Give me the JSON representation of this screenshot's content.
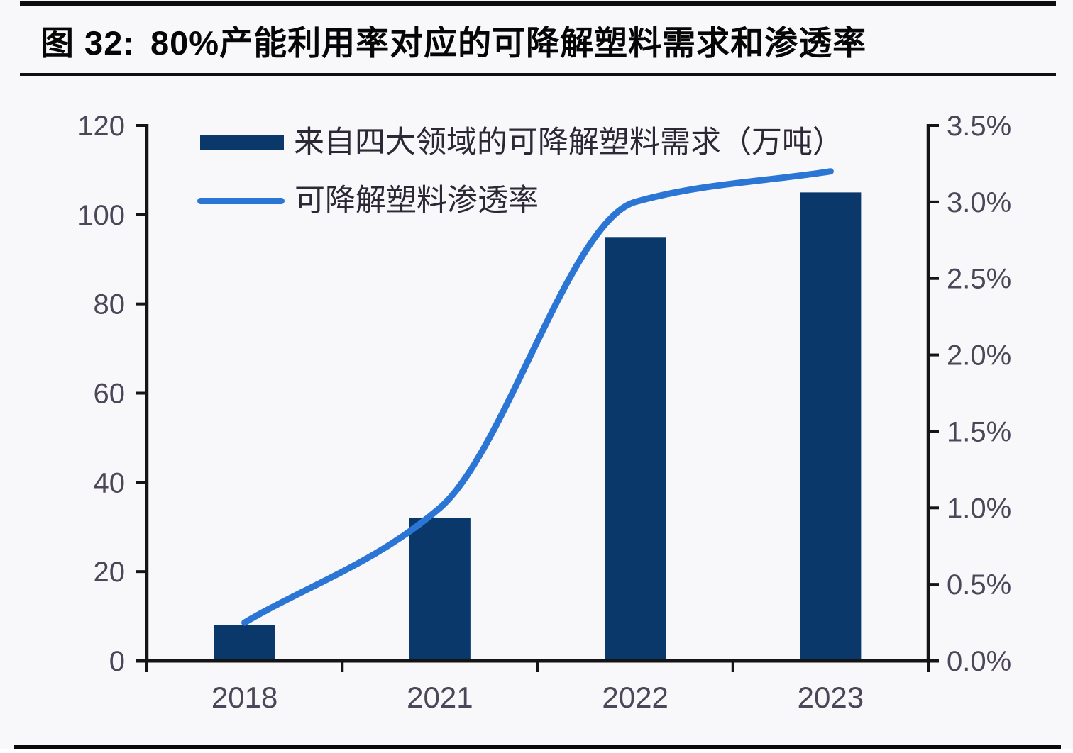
{
  "header": {
    "fig_label": "图 32:",
    "title": "80%产能利用率对应的可降解塑料需求和渗透率"
  },
  "colors": {
    "bar": "#0a386b",
    "line": "#2b76d4",
    "axis": "#141414",
    "tick_label": "#4c4758",
    "legend_text": "#2c2836",
    "title_text": "#060606",
    "background": "#f8f7fa"
  },
  "chart_data": {
    "type": "bar+line",
    "categories": [
      "2018",
      "2021",
      "2022",
      "2023"
    ],
    "series": [
      {
        "name": "来自四大领域的可降解塑料需求（万吨）",
        "type": "bar",
        "axis": "left",
        "values": [
          8,
          32,
          95,
          105
        ]
      },
      {
        "name": "可降解塑料渗透率",
        "type": "line",
        "axis": "right",
        "values_pct": [
          0.25,
          1.0,
          3.0,
          3.2
        ]
      }
    ],
    "y_left": {
      "min": 0,
      "max": 120,
      "ticks": [
        0,
        20,
        40,
        60,
        80,
        100,
        120
      ]
    },
    "y_right": {
      "min": 0,
      "max": 3.5,
      "tick_labels": [
        "0.0%",
        "0.5%",
        "1.0%",
        "1.5%",
        "2.0%",
        "2.5%",
        "3.0%",
        "3.5%"
      ]
    },
    "grid": false,
    "legend_position": "top-left"
  }
}
